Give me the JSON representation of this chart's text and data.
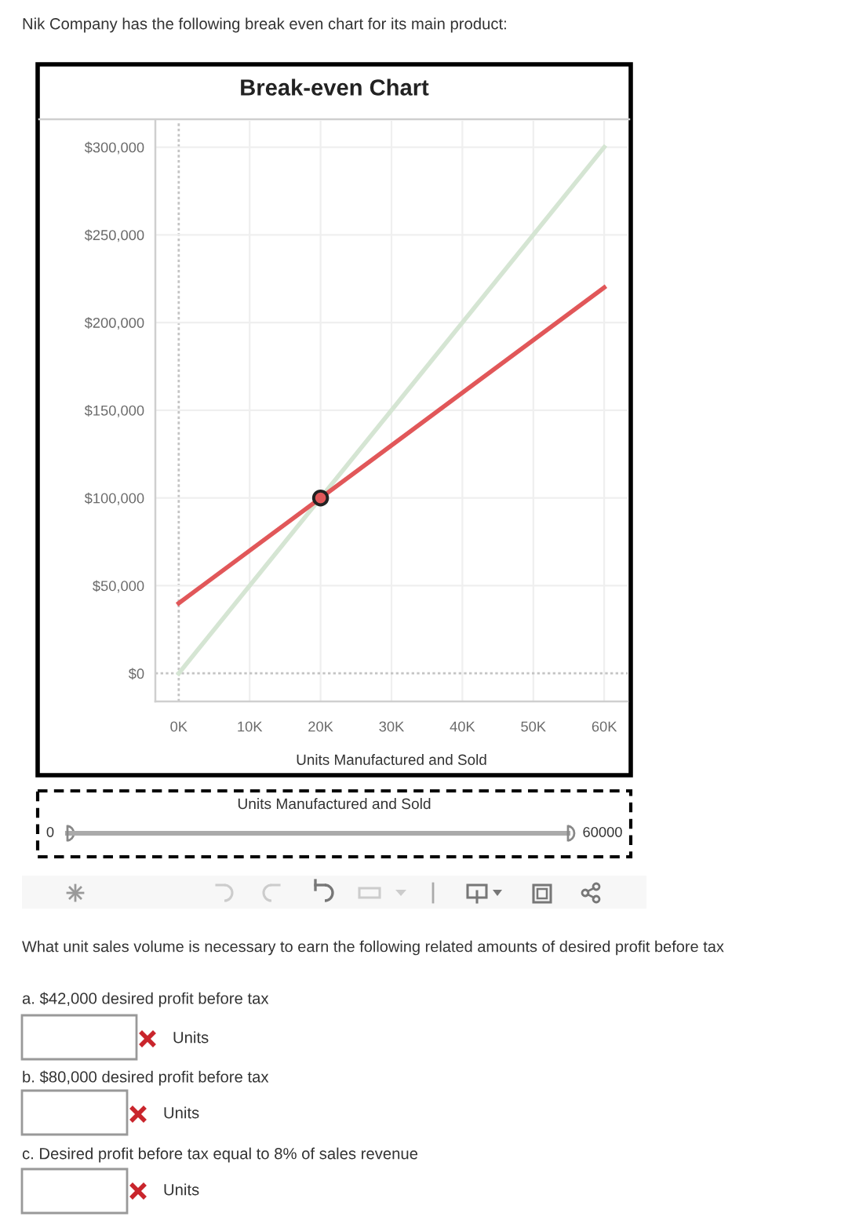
{
  "chart_data": {
    "type": "line",
    "title": "Break-even Chart",
    "xlabel": "Units Manufactured and Sold",
    "xlim": [
      -3300,
      63300
    ],
    "xticks": [
      {
        "value": 0,
        "label": "0K"
      },
      {
        "value": 10000,
        "label": "10K"
      },
      {
        "value": 20000,
        "label": "20K"
      },
      {
        "value": 30000,
        "label": "30K"
      },
      {
        "value": 40000,
        "label": "40K"
      },
      {
        "value": 50000,
        "label": "50K"
      },
      {
        "value": 60000,
        "label": "60K"
      }
    ],
    "ylim": [
      -16000,
      315000
    ],
    "yticks": [
      {
        "value": 0,
        "label": "$0"
      },
      {
        "value": 50000,
        "label": "$50,000"
      },
      {
        "value": 100000,
        "label": "$100,000"
      },
      {
        "value": 150000,
        "label": "$150,000"
      },
      {
        "value": 200000,
        "label": "$200,000"
      },
      {
        "value": 250000,
        "label": "$250,000"
      },
      {
        "value": 300000,
        "label": "$300,000"
      }
    ],
    "grid": true,
    "series": [
      {
        "x": [
          0,
          60000
        ],
        "values": [
          0,
          300000
        ],
        "color": "#d5e5d3"
      },
      {
        "x": [
          0,
          60000
        ],
        "values": [
          40000,
          220000
        ],
        "color": "#e15759"
      },
      {
        "type": "scatter",
        "x": [
          20000
        ],
        "values": [
          100000
        ],
        "color": "#e15759",
        "marker": "circle"
      }
    ],
    "annotations": [
      "Nik Company has the following break even chart for its main product:",
      "Units Manufactured and Sold",
      "0",
      "60000",
      "What unit sales volume is necessary to earn the following related amounts of desired profit before tax",
      "a. $42,000 desired profit before tax",
      "Units",
      "b. $80,000 desired profit before tax",
      "Units",
      "c. Desired profit before tax equal to 8% of sales revenue",
      "Units"
    ]
  }
}
